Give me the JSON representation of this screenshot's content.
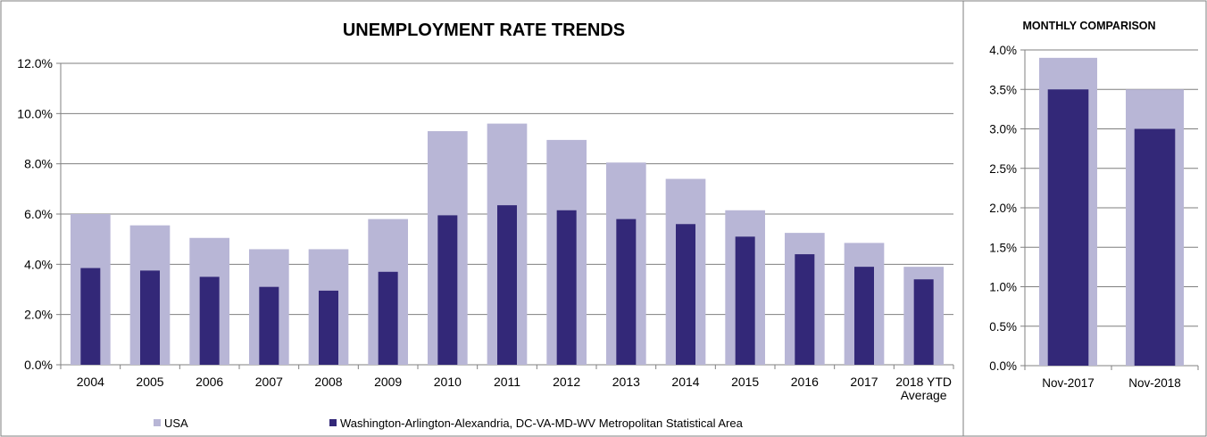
{
  "colors": {
    "usa": "#b8b6d6",
    "metro": "#332878",
    "grid": "#7f7f7f",
    "axis": "#808080",
    "border": "#7f7f7f",
    "text": "#000000"
  },
  "chart_data": [
    {
      "type": "bar",
      "title": "UNEMPLOYMENT RATE TRENDS",
      "xlabel": "",
      "ylabel": "",
      "categories": [
        "2004",
        "2005",
        "2006",
        "2007",
        "2008",
        "2009",
        "2010",
        "2011",
        "2012",
        "2013",
        "2014",
        "2015",
        "2016",
        "2017",
        "2018 YTD Average"
      ],
      "category_lines": [
        [
          "2004"
        ],
        [
          "2005"
        ],
        [
          "2006"
        ],
        [
          "2007"
        ],
        [
          "2008"
        ],
        [
          "2009"
        ],
        [
          "2010"
        ],
        [
          "2011"
        ],
        [
          "2012"
        ],
        [
          "2013"
        ],
        [
          "2014"
        ],
        [
          "2015"
        ],
        [
          "2016"
        ],
        [
          "2017"
        ],
        [
          "2018 YTD",
          "Average"
        ]
      ],
      "series": [
        {
          "name": "USA",
          "values": [
            6.0,
            5.55,
            5.05,
            4.6,
            4.6,
            5.8,
            9.3,
            9.6,
            8.95,
            8.05,
            7.4,
            6.15,
            5.25,
            4.85,
            3.9
          ]
        },
        {
          "name": "Washington-Arlington-Alexandria, DC-VA-MD-WV Metropolitan Statistical Area",
          "values": [
            3.85,
            3.75,
            3.5,
            3.1,
            2.95,
            3.7,
            5.95,
            6.35,
            6.15,
            5.8,
            5.6,
            5.1,
            4.4,
            3.9,
            3.4
          ]
        }
      ],
      "ylim": [
        0,
        12
      ],
      "yticks": [
        0,
        2,
        4,
        6,
        8,
        10,
        12
      ],
      "ytick_labels": [
        "0.0%",
        "2.0%",
        "4.0%",
        "6.0%",
        "8.0%",
        "10.0%",
        "12.0%"
      ],
      "grid": true,
      "legend": "bottom"
    },
    {
      "type": "bar",
      "title": "MONTHLY COMPARISON",
      "xlabel": "",
      "ylabel": "",
      "categories": [
        "Nov-2017",
        "Nov-2018"
      ],
      "category_lines": [
        [
          "Nov-2017"
        ],
        [
          "Nov-2018"
        ]
      ],
      "series": [
        {
          "name": "USA",
          "values": [
            3.9,
            3.5
          ]
        },
        {
          "name": "Washington-Arlington-Alexandria, DC-VA-MD-WV Metropolitan Statistical Area",
          "values": [
            3.5,
            3.0
          ]
        }
      ],
      "ylim": [
        0,
        4
      ],
      "yticks": [
        0,
        0.5,
        1,
        1.5,
        2,
        2.5,
        3,
        3.5,
        4
      ],
      "ytick_labels": [
        "0.0%",
        "0.5%",
        "1.0%",
        "1.5%",
        "2.0%",
        "2.5%",
        "3.0%",
        "3.5%",
        "4.0%"
      ],
      "grid": true,
      "legend": "none"
    }
  ]
}
